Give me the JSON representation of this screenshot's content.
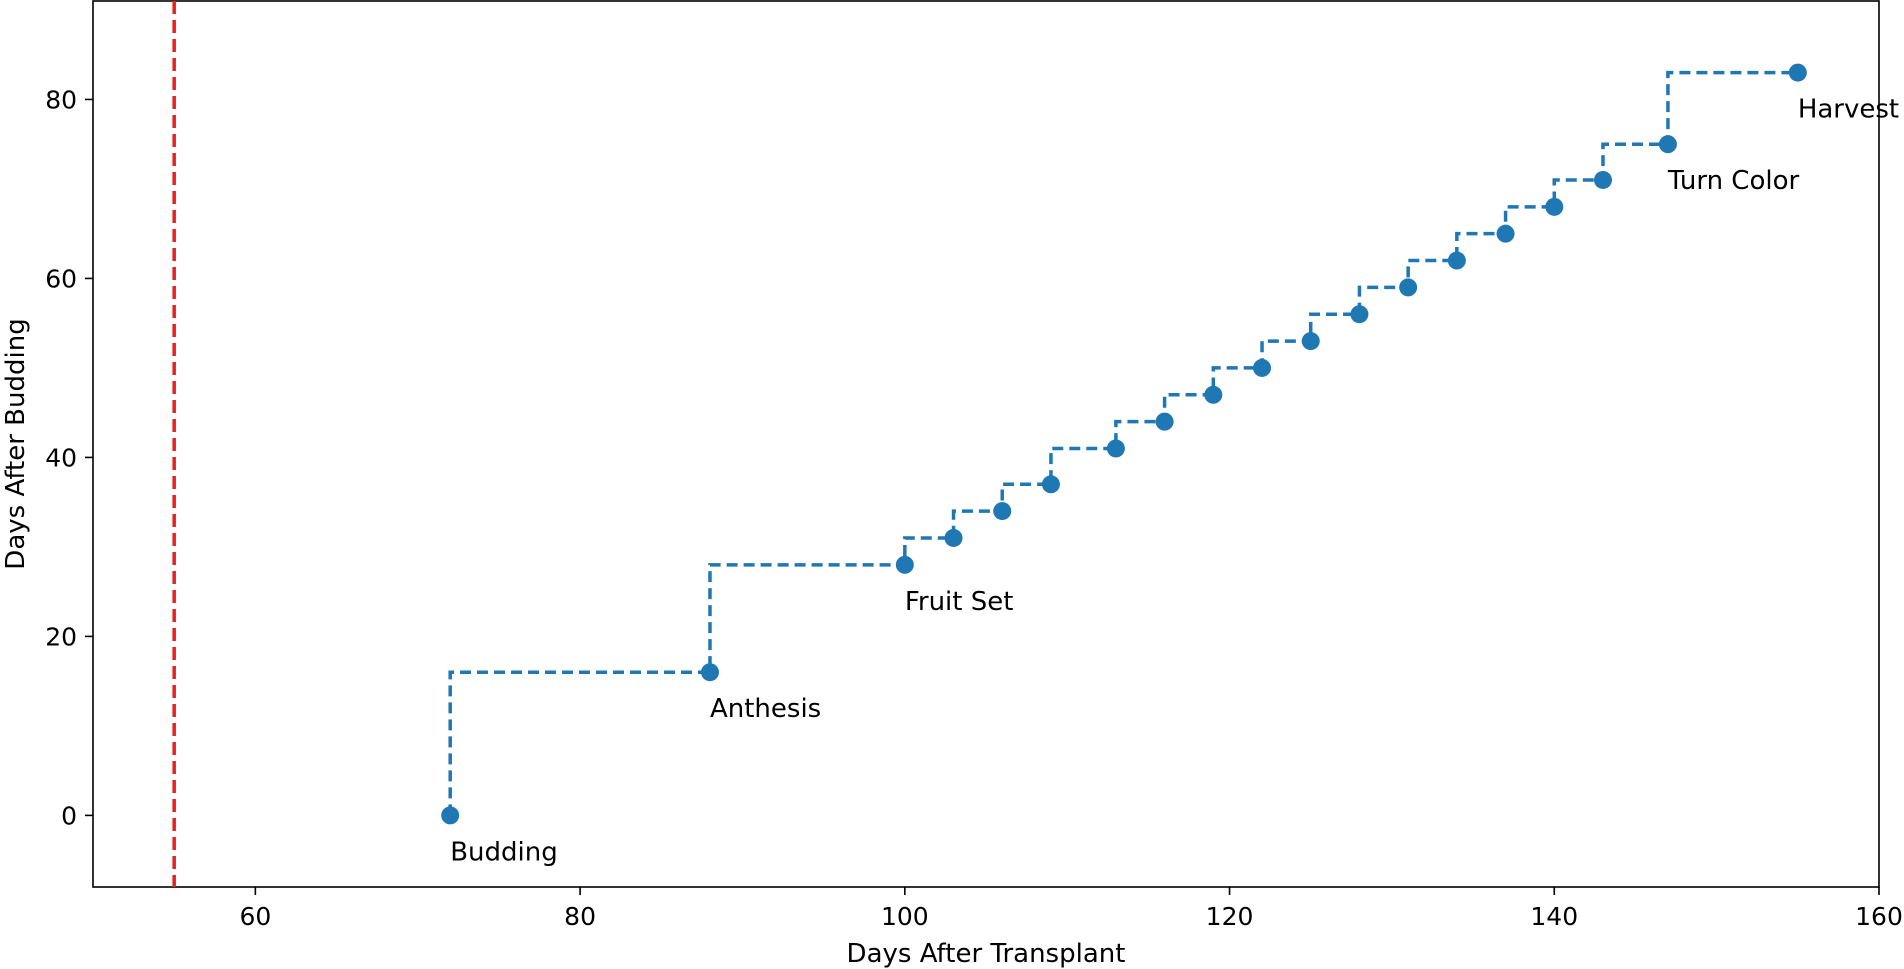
{
  "chart_data": {
    "type": "line",
    "title": "",
    "xlabel": "Days After Transplant",
    "ylabel": "Days After Budding",
    "xlim": [
      50,
      160
    ],
    "ylim": [
      -8,
      91
    ],
    "xticks": [
      60,
      80,
      100,
      120,
      140,
      160
    ],
    "yticks": [
      0,
      20,
      40,
      60,
      80
    ],
    "grid": false,
    "step_style": "post",
    "series": [
      {
        "color": "#1f77b4",
        "x": [
          72,
          88,
          100,
          103,
          106,
          109,
          113,
          116,
          119,
          122,
          125,
          128,
          131,
          134,
          137,
          140,
          143,
          147,
          155
        ],
        "y": [
          0,
          16,
          28,
          31,
          34,
          37,
          41,
          44,
          47,
          50,
          53,
          56,
          59,
          62,
          65,
          68,
          71,
          75,
          83
        ]
      }
    ],
    "annotations": [
      {
        "text": "Budding",
        "x": 72,
        "y": 0
      },
      {
        "text": "Anthesis",
        "x": 88,
        "y": 16
      },
      {
        "text": "Fruit Set",
        "x": 100,
        "y": 28
      },
      {
        "text": "Turn Color",
        "x": 147,
        "y": 75
      },
      {
        "text": "Harvest",
        "x": 155,
        "y": 83
      }
    ],
    "reference_line": {
      "orientation": "vertical",
      "x": 55,
      "color": "#e8211c",
      "style": "dashed"
    }
  }
}
